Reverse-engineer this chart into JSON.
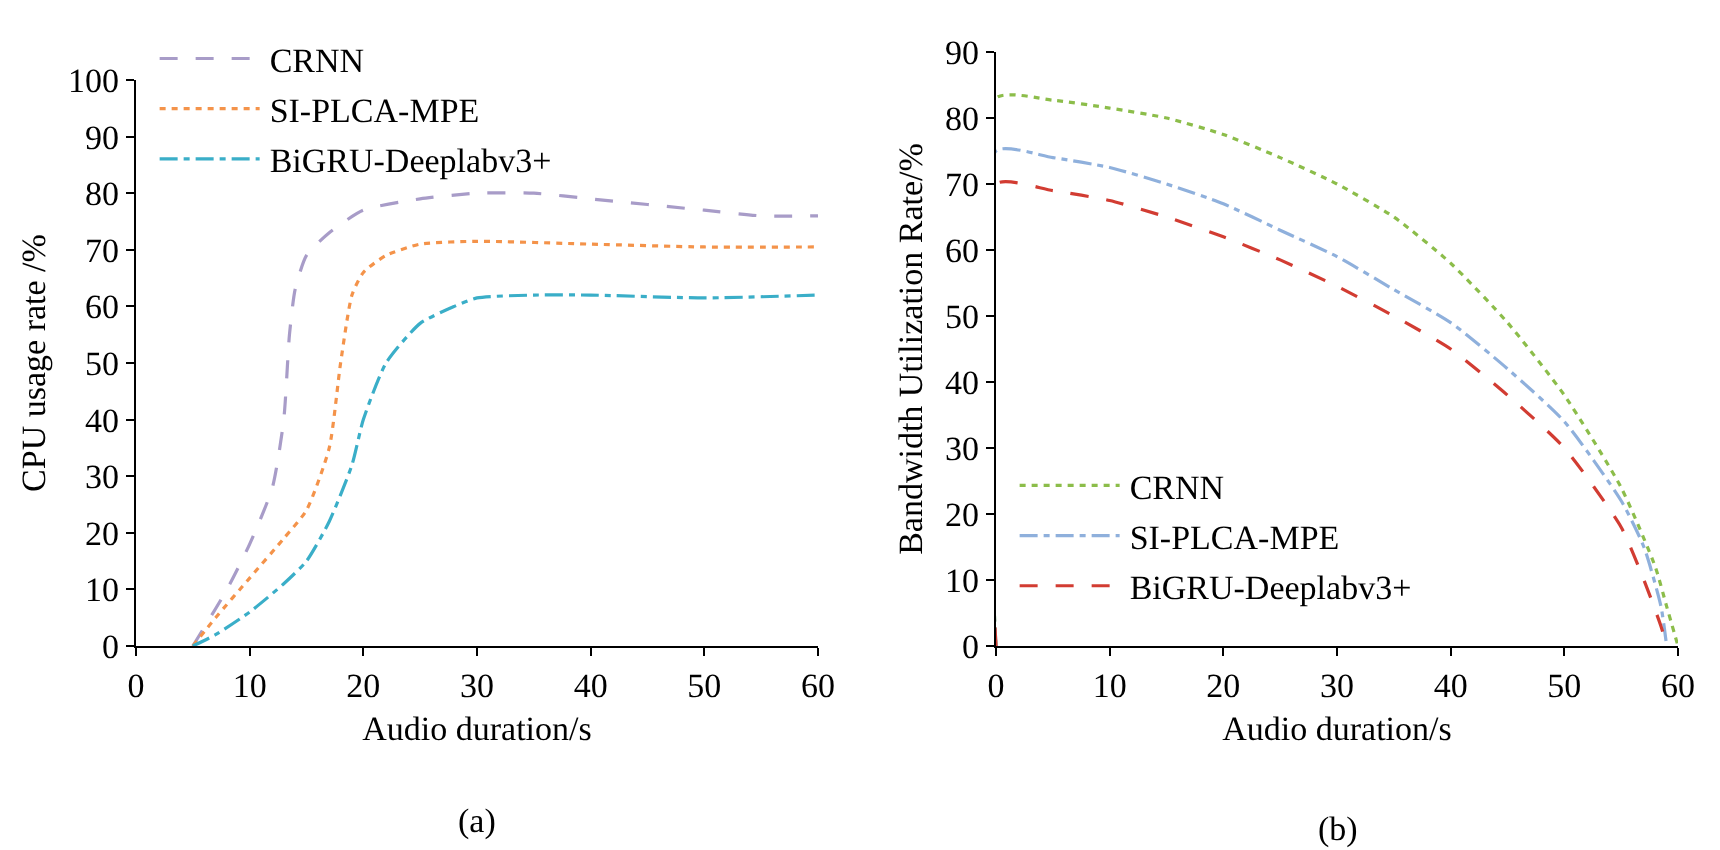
{
  "chart_data": [
    {
      "type": "line",
      "xlabel": "Audio duration/s",
      "ylabel": "CPU usage rate /%",
      "annotations": [
        "(a)"
      ],
      "xlim": [
        0,
        60
      ],
      "xticks": [
        0,
        10,
        20,
        30,
        40,
        50,
        60
      ],
      "ylim": [
        0,
        100
      ],
      "yticks": [
        0,
        10,
        20,
        30,
        40,
        50,
        60,
        70,
        80,
        90,
        100
      ],
      "grid": false,
      "legend": "top left",
      "marker": "none",
      "series": [
        {
          "name": "CRNN",
          "color": "#a89cc8",
          "line_style": "dashed",
          "x": [
            5,
            8,
            10,
            12,
            13,
            13.5,
            14,
            15,
            17,
            20,
            25,
            30,
            35,
            40,
            50,
            55,
            60
          ],
          "values": [
            0,
            10,
            18,
            28,
            40,
            55,
            63,
            69,
            73,
            77,
            79,
            80,
            80,
            79,
            77,
            76,
            76
          ]
        },
        {
          "name": "SI-PLCA-MPE",
          "color": "#f4934a",
          "line_style": "dotted",
          "x": [
            5,
            7,
            10,
            13,
            15,
            17,
            18,
            19,
            20,
            22,
            25,
            30,
            40,
            50,
            60
          ],
          "values": [
            0,
            5,
            12,
            19,
            24,
            35,
            50,
            62,
            66,
            69,
            71,
            71.5,
            71,
            70.5,
            70.5
          ]
        },
        {
          "name": "BiGRU-Deeplabv3+",
          "color": "#3aaec8",
          "line_style": "dashdot",
          "x": [
            5,
            7,
            10,
            13,
            15,
            17,
            19,
            20,
            22,
            25,
            28,
            30,
            35,
            40,
            50,
            60
          ],
          "values": [
            0,
            2,
            6,
            11,
            15,
            22,
            32,
            40,
            50,
            57,
            60,
            61.5,
            62,
            62,
            61.5,
            62
          ]
        }
      ]
    },
    {
      "type": "line",
      "xlabel": "Audio duration/s",
      "ylabel": "Bandwidth Utilization Rate/%",
      "annotations": [
        "(b)"
      ],
      "xlim": [
        0,
        60
      ],
      "xticks": [
        0,
        10,
        20,
        30,
        40,
        50,
        60
      ],
      "ylim": [
        0,
        90
      ],
      "yticks": [
        0,
        10,
        20,
        30,
        40,
        50,
        60,
        70,
        80,
        90
      ],
      "grid": false,
      "legend": "bottom left",
      "marker": "none",
      "series": [
        {
          "name": "CRNN",
          "color": "#8cbd4a",
          "line_style": "dotted",
          "x": [
            0,
            0,
            5,
            10,
            15,
            20,
            25,
            30,
            35,
            40,
            45,
            50,
            55,
            58,
            59,
            60
          ],
          "values": [
            0,
            83,
            82.7,
            81.5,
            80,
            77.5,
            74,
            70,
            65,
            58,
            49,
            38,
            24,
            12,
            6,
            0
          ]
        },
        {
          "name": "SI-PLCA-MPE",
          "color": "#8fb0dc",
          "line_style": "dashdot",
          "x": [
            0,
            0,
            5,
            10,
            15,
            20,
            25,
            30,
            35,
            40,
            45,
            50,
            55,
            57,
            58.5,
            59
          ],
          "values": [
            0,
            75,
            74,
            72.5,
            70,
            67,
            63,
            59,
            54,
            49,
            42,
            34,
            22,
            15,
            6,
            0
          ]
        },
        {
          "name": "BiGRU-Deeplabv3+",
          "color": "#d23c32",
          "line_style": "dashed",
          "x": [
            0,
            0,
            5,
            10,
            15,
            20,
            25,
            30,
            35,
            40,
            45,
            50,
            55,
            57,
            58.5,
            59
          ],
          "values": [
            0,
            70,
            69,
            67.5,
            65,
            62,
            58.5,
            54.5,
            50,
            45,
            38,
            30,
            18,
            10,
            3,
            0
          ]
        }
      ]
    }
  ]
}
